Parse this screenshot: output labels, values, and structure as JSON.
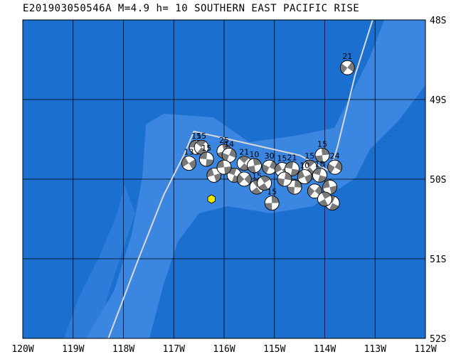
{
  "title": "E201903050546A M=4.9 h= 10 SOUTHERN EAST PACIFIC RISE",
  "colors": {
    "ocean_deep": "#1a6fcf",
    "ocean_shallow": "#3a86e0",
    "grid": "#000000",
    "plate_boundary": "#d8d8d8",
    "epicenter": "#f2e600",
    "beachball_dark": "#7a7a7a"
  },
  "map": {
    "lon_range": [
      -120,
      -112
    ],
    "lat_range": [
      -52,
      -48
    ],
    "lon_ticks": [
      {
        "value": -120,
        "label": "120W"
      },
      {
        "value": -119,
        "label": "119W"
      },
      {
        "value": -118,
        "label": "118W"
      },
      {
        "value": -117,
        "label": "117W"
      },
      {
        "value": -116,
        "label": "116W"
      },
      {
        "value": -115,
        "label": "115W"
      },
      {
        "value": -114,
        "label": "114W"
      },
      {
        "value": -113,
        "label": "113W"
      },
      {
        "value": -112,
        "label": "112W"
      }
    ],
    "lat_ticks": [
      {
        "value": -48,
        "label": "48S"
      },
      {
        "value": -49,
        "label": "49S"
      },
      {
        "value": -50,
        "label": "50S"
      },
      {
        "value": -51,
        "label": "51S"
      },
      {
        "value": -52,
        "label": "52S"
      }
    ],
    "epicenter": {
      "lon": -116.25,
      "lat": -50.25
    },
    "plate_boundary": [
      [
        -118.3,
        -52.0
      ],
      [
        -117.7,
        -51.0
      ],
      [
        -117.2,
        -50.2
      ],
      [
        -116.8,
        -49.7
      ],
      [
        -116.6,
        -49.4
      ],
      [
        -114.5,
        -49.7
      ],
      [
        -113.9,
        -49.9
      ],
      [
        -113.75,
        -49.6
      ],
      [
        -113.4,
        -48.7
      ],
      [
        -113.05,
        -48.0
      ]
    ],
    "events": [
      {
        "lon": -116.55,
        "lat": -49.6,
        "depth": "15"
      },
      {
        "lon": -116.45,
        "lat": -49.6,
        "depth": "15"
      },
      {
        "lon": -116.0,
        "lat": -49.65,
        "depth": "25"
      },
      {
        "lon": -115.9,
        "lat": -49.7,
        "depth": "14"
      },
      {
        "lon": -116.7,
        "lat": -49.8,
        "depth": "13"
      },
      {
        "lon": -116.35,
        "lat": -49.75,
        "depth": "15"
      },
      {
        "lon": -115.6,
        "lat": -49.8,
        "depth": "21"
      },
      {
        "lon": -115.4,
        "lat": -49.83,
        "depth": "10"
      },
      {
        "lon": -115.1,
        "lat": -49.85,
        "depth": "30"
      },
      {
        "lon": -114.85,
        "lat": -49.88,
        "depth": "15"
      },
      {
        "lon": -114.65,
        "lat": -49.87,
        "depth": "21"
      },
      {
        "lon": -114.3,
        "lat": -49.85,
        "depth": "15"
      },
      {
        "lon": -114.05,
        "lat": -49.7,
        "depth": "15"
      },
      {
        "lon": -113.8,
        "lat": -49.85,
        "depth": "24"
      },
      {
        "lon": -114.4,
        "lat": -49.97,
        "depth": "10"
      },
      {
        "lon": -114.1,
        "lat": -49.95,
        "depth": "18"
      },
      {
        "lon": -115.35,
        "lat": -50.1,
        "depth": "15"
      },
      {
        "lon": -115.05,
        "lat": -50.3,
        "depth": "15"
      },
      {
        "lon": -113.55,
        "lat": -48.6,
        "depth": "21"
      },
      {
        "lon": -116.2,
        "lat": -49.95,
        "depth": ""
      },
      {
        "lon": -115.8,
        "lat": -49.95,
        "depth": ""
      },
      {
        "lon": -115.2,
        "lat": -50.05,
        "depth": ""
      },
      {
        "lon": -114.6,
        "lat": -50.1,
        "depth": ""
      },
      {
        "lon": -114.2,
        "lat": -50.15,
        "depth": ""
      },
      {
        "lon": -113.9,
        "lat": -50.1,
        "depth": ""
      },
      {
        "lon": -113.85,
        "lat": -50.3,
        "depth": ""
      },
      {
        "lon": -114.0,
        "lat": -50.25,
        "depth": ""
      },
      {
        "lon": -114.8,
        "lat": -50.0,
        "depth": ""
      },
      {
        "lon": -115.6,
        "lat": -50.0,
        "depth": ""
      },
      {
        "lon": -116.0,
        "lat": -49.85,
        "depth": ""
      }
    ]
  }
}
